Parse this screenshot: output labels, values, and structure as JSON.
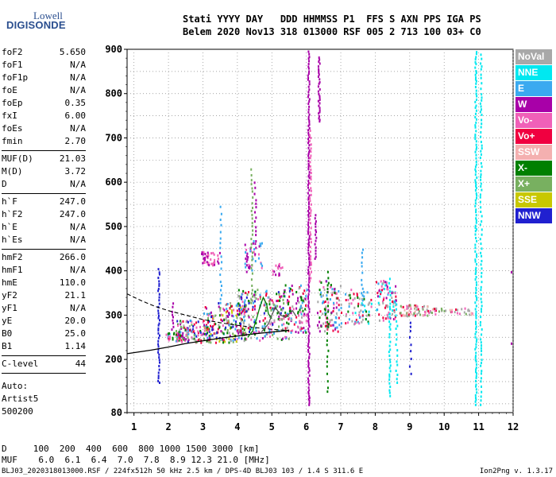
{
  "logo": {
    "line1": "Lowell",
    "line2": "DIGISONDE"
  },
  "header": {
    "line1": "Stati YYYY DAY   DDD HHMMSS P1  FFS S AXN PPS IGA PS",
    "line2": "Belem 2020 Nov13 318 013000 RSF 005 2 713 100 03+ C0"
  },
  "params": [
    {
      "name": "foF2",
      "value": "5.650"
    },
    {
      "name": "foF1",
      "value": "N/A"
    },
    {
      "name": "foF1p",
      "value": "N/A"
    },
    {
      "name": "foE",
      "value": "N/A"
    },
    {
      "name": "foEp",
      "value": "0.35"
    },
    {
      "name": "fxI",
      "value": "6.00"
    },
    {
      "name": "foEs",
      "value": "N/A"
    },
    {
      "name": "fmin",
      "value": "2.70"
    },
    {
      "sep": true
    },
    {
      "name": "MUF(D)",
      "value": "21.03"
    },
    {
      "name": "M(D)",
      "value": "3.72"
    },
    {
      "name": "D",
      "value": "N/A"
    },
    {
      "sep": true
    },
    {
      "name": "h`F",
      "value": "247.0"
    },
    {
      "name": "h`F2",
      "value": "247.0"
    },
    {
      "name": "h`E",
      "value": "N/A"
    },
    {
      "name": "h`Es",
      "value": "N/A"
    },
    {
      "sep": true
    },
    {
      "name": "hmF2",
      "value": "266.0"
    },
    {
      "name": "hmF1",
      "value": "N/A"
    },
    {
      "name": "hmE",
      "value": "110.0"
    },
    {
      "name": "yF2",
      "value": "21.1"
    },
    {
      "name": "yF1",
      "value": "N/A"
    },
    {
      "name": "yE",
      "value": "20.0"
    },
    {
      "name": "B0",
      "value": "25.0"
    },
    {
      "name": "B1",
      "value": "1.14"
    },
    {
      "sep": true
    },
    {
      "name": "C-level",
      "value": "44"
    },
    {
      "sep": true
    }
  ],
  "autoscale": [
    "Auto:",
    "Artist5",
    "500200"
  ],
  "legend": [
    {
      "label": "NoVal",
      "color": "#a8a8a8"
    },
    {
      "label": "NNE",
      "color": "#00e8f0"
    },
    {
      "label": "E",
      "color": "#3aaaf0"
    },
    {
      "label": "W",
      "color": "#a800a8"
    },
    {
      "label": "Vo-",
      "color": "#f060b8"
    },
    {
      "label": "Vo+",
      "color": "#f00040"
    },
    {
      "label": "SSW",
      "color": "#f4b0b0"
    },
    {
      "label": "X-",
      "color": "#008000"
    },
    {
      "label": "X+",
      "color": "#78b060"
    },
    {
      "label": "SSE",
      "color": "#c8c800"
    },
    {
      "label": "NNW",
      "color": "#2020d0"
    }
  ],
  "dmuf": {
    "line1": "D     100  200  400  600  800 1000 1500 3000 [km]",
    "line2": "MUF    6.0  6.1  6.4  7.0  7.8  8.9 12.3 21.0 [MHz]"
  },
  "footer": "BLJ03_2020318013000.RSF / 224fx512h 50 kHz 2.5 km / DPS-4D BLJ03 103 / 1.4 S 311.6 E",
  "version": "Ion2Png v. 1.3.17",
  "chart_data": {
    "type": "scatter",
    "title": "",
    "xlabel": "",
    "ylabel": "",
    "xlim": [
      0.8,
      12
    ],
    "ylim": [
      80,
      900
    ],
    "x_ticks": [
      1,
      2,
      3,
      4,
      5,
      6,
      7,
      8,
      9,
      10,
      11,
      12
    ],
    "y_ticks": [
      80,
      200,
      300,
      400,
      500,
      600,
      700,
      800,
      900
    ],
    "grid": true,
    "legend_position": "right-outside",
    "profile_curve": [
      [
        0.8,
        213
      ],
      [
        1.5,
        221
      ],
      [
        2.0,
        228
      ],
      [
        2.5,
        236
      ],
      [
        3.0,
        242
      ],
      [
        3.5,
        248
      ],
      [
        4.0,
        253
      ],
      [
        4.5,
        258
      ],
      [
        5.0,
        262
      ],
      [
        5.3,
        264
      ],
      [
        5.5,
        266
      ]
    ],
    "estimated_curve": [
      [
        0.8,
        348
      ],
      [
        1.2,
        333
      ],
      [
        1.6,
        320
      ],
      [
        2.0,
        310
      ],
      [
        2.5,
        300
      ],
      [
        3.0,
        290
      ],
      [
        3.5,
        283
      ],
      [
        4.0,
        277
      ],
      [
        4.5,
        272
      ],
      [
        5.0,
        268
      ],
      [
        5.5,
        265
      ]
    ],
    "trace_x": [
      [
        4.3,
        250
      ],
      [
        4.45,
        265
      ],
      [
        4.55,
        290
      ],
      [
        4.65,
        318
      ],
      [
        4.75,
        340
      ],
      [
        4.85,
        325
      ],
      [
        4.9,
        303
      ],
      [
        5.0,
        292
      ]
    ],
    "trace_o": [
      [
        4.7,
        262
      ],
      [
        4.9,
        280
      ],
      [
        5.0,
        300
      ],
      [
        5.1,
        318
      ],
      [
        5.25,
        300
      ],
      [
        5.4,
        295
      ],
      [
        5.6,
        310
      ],
      [
        5.7,
        298
      ]
    ],
    "echo_clusters": [
      {
        "x": [
          1.9,
          2.4
        ],
        "h": [
          245,
          262
        ],
        "n": 40,
        "colors": [
          "#f00040",
          "#f060b8",
          "#008000",
          "#a800a8",
          "#3aaaf0"
        ]
      },
      {
        "x": [
          2.2,
          3.2
        ],
        "h": [
          240,
          290
        ],
        "n": 120,
        "colors": [
          "#f00040",
          "#f060b8",
          "#a800a8",
          "#008000",
          "#78b060",
          "#3aaaf0",
          "#2020d0",
          "#a8a8a8"
        ]
      },
      {
        "x": [
          3.0,
          4.2
        ],
        "h": [
          240,
          330
        ],
        "n": 200,
        "colors": [
          "#f00040",
          "#f060b8",
          "#a800a8",
          "#008000",
          "#78b060",
          "#3aaaf0",
          "#2020d0",
          "#a8a8a8",
          "#c8c800"
        ]
      },
      {
        "x": [
          4.0,
          5.5
        ],
        "h": [
          245,
          360
        ],
        "n": 220,
        "colors": [
          "#f00040",
          "#f060b8",
          "#a800a8",
          "#008000",
          "#78b060",
          "#3aaaf0",
          "#2020d0",
          "#a8a8a8"
        ]
      },
      {
        "x": [
          5.3,
          6.0
        ],
        "h": [
          260,
          370
        ],
        "n": 100,
        "colors": [
          "#f00040",
          "#f060b8",
          "#a800a8",
          "#008000",
          "#3aaaf0",
          "#a8a8a8"
        ]
      },
      {
        "x": [
          6.3,
          7.0
        ],
        "h": [
          265,
          380
        ],
        "n": 110,
        "colors": [
          "#f00040",
          "#f060b8",
          "#a800a8",
          "#3aaaf0",
          "#008000",
          "#a8a8a8"
        ]
      },
      {
        "x": [
          7.1,
          7.9
        ],
        "h": [
          280,
          360
        ],
        "n": 70,
        "colors": [
          "#f00040",
          "#f060b8",
          "#3aaaf0",
          "#00e8f0",
          "#a8a8a8",
          "#008000"
        ]
      },
      {
        "x": [
          8.0,
          8.6
        ],
        "h": [
          290,
          380
        ],
        "n": 80,
        "colors": [
          "#f00040",
          "#f060b8",
          "#3aaaf0",
          "#00e8f0",
          "#a8a8a8",
          "#a800a8"
        ]
      },
      {
        "x": [
          8.7,
          9.5
        ],
        "h": [
          300,
          325
        ],
        "n": 60,
        "colors": [
          "#f00040",
          "#f060b8",
          "#a8a8a8",
          "#f4b0b0",
          "#78b060"
        ]
      },
      {
        "x": [
          9.5,
          10.8
        ],
        "h": [
          303,
          318
        ],
        "n": 40,
        "colors": [
          "#f00040",
          "#f060b8",
          "#a8a8a8",
          "#f4b0b0",
          "#78b060"
        ]
      },
      {
        "x": [
          2.9,
          3.5
        ],
        "h": [
          415,
          445
        ],
        "n": 40,
        "colors": [
          "#a800a8",
          "#f060b8"
        ]
      },
      {
        "x": [
          4.2,
          4.7
        ],
        "h": [
          400,
          470
        ],
        "n": 40,
        "colors": [
          "#a800a8",
          "#f060b8",
          "#3aaaf0"
        ]
      },
      {
        "x": [
          5.0,
          5.3
        ],
        "h": [
          390,
          420
        ],
        "n": 15,
        "colors": [
          "#a800a8",
          "#f060b8"
        ]
      }
    ],
    "echo_columns": [
      {
        "x": 1.7,
        "h": [
          150,
          410
        ],
        "step": 6,
        "color": "#2020d0"
      },
      {
        "x": 2.1,
        "h": [
          270,
          330
        ],
        "step": 8,
        "color": "#a800a8"
      },
      {
        "x": 3.5,
        "h": [
          330,
          550
        ],
        "step": 14,
        "color": "#3aaaf0"
      },
      {
        "x": 4.4,
        "h": [
          330,
          640
        ],
        "step": 10,
        "color": "#78b060"
      },
      {
        "x": 4.5,
        "h": [
          440,
          610
        ],
        "step": 12,
        "color": "#a800a8"
      },
      {
        "x": 6.05,
        "h": [
          100,
          900
        ],
        "step": 5,
        "color": "#a800a8"
      },
      {
        "x": 6.1,
        "h": [
          380,
          720
        ],
        "step": 8,
        "color": "#f060b8"
      },
      {
        "x": 6.35,
        "h": [
          740,
          890
        ],
        "step": 5,
        "color": "#a800a8"
      },
      {
        "x": 6.25,
        "h": [
          430,
          530
        ],
        "step": 6,
        "color": "#a800a8"
      },
      {
        "x": 6.6,
        "h": [
          130,
          400
        ],
        "step": 12,
        "color": "#008000"
      },
      {
        "x": 7.6,
        "h": [
          310,
          460
        ],
        "step": 12,
        "color": "#3aaaf0"
      },
      {
        "x": 8.4,
        "h": [
          120,
          390
        ],
        "step": 8,
        "color": "#00e8f0"
      },
      {
        "x": 8.6,
        "h": [
          150,
          330
        ],
        "step": 10,
        "color": "#00e8f0"
      },
      {
        "x": 9.0,
        "h": [
          170,
          300
        ],
        "step": 14,
        "color": "#2020d0"
      },
      {
        "x": 10.9,
        "h": [
          100,
          900
        ],
        "step": 6,
        "color": "#00e8f0"
      },
      {
        "x": 11.05,
        "h": [
          100,
          900
        ],
        "step": 9,
        "color": "#00e8f0"
      },
      {
        "x": 11.95,
        "h": [
          80,
          500
        ],
        "step": 12,
        "color": "#a800a8"
      }
    ]
  }
}
